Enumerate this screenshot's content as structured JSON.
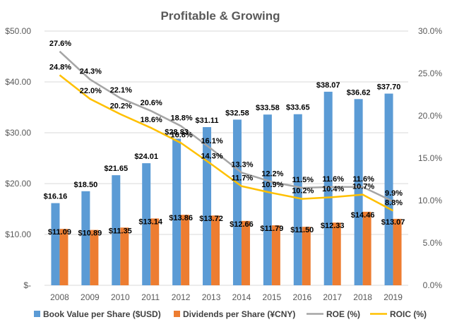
{
  "chart_data": {
    "type": "bar",
    "title": "Profitable & Growing",
    "categories": [
      "2008",
      "2009",
      "2010",
      "2011",
      "2012",
      "2013",
      "2014",
      "2015",
      "2016",
      "2017",
      "2018",
      "2019"
    ],
    "y_left": {
      "ylim": [
        0,
        50
      ],
      "ticks": [
        0,
        10,
        20,
        30,
        40,
        50
      ],
      "tick_labels": [
        "$-",
        "$10.00",
        "$20.00",
        "$30.00",
        "$40.00",
        "$50.00"
      ]
    },
    "y_right": {
      "ylim": [
        0,
        30
      ],
      "ticks": [
        0,
        5,
        10,
        15,
        20,
        25,
        30
      ],
      "tick_labels": [
        "0.0%",
        "5.0%",
        "10.0%",
        "15.0%",
        "20.0%",
        "25.0%",
        "30.0%"
      ]
    },
    "grid": true,
    "legend_position": "bottom",
    "series": [
      {
        "name": "Book Value per Share ($USD)",
        "kind": "bar",
        "axis": "left",
        "color": "#5B9BD5",
        "values": [
          16.16,
          18.5,
          21.65,
          24.01,
          28.83,
          31.11,
          32.58,
          33.58,
          33.65,
          38.07,
          36.62,
          37.7
        ],
        "labels": [
          "$16.16",
          "$18.50",
          "$21.65",
          "$24.01",
          "$28.83",
          "$31.11",
          "$32.58",
          "$33.58",
          "$33.65",
          "$38.07",
          "$36.62",
          "$37.70"
        ]
      },
      {
        "name": "Dividends per Share (¥CNY)",
        "kind": "bar",
        "axis": "left",
        "color": "#ED7D31",
        "values": [
          11.09,
          10.89,
          11.35,
          13.14,
          13.86,
          13.72,
          12.66,
          11.79,
          11.5,
          12.33,
          14.46,
          13.07
        ],
        "labels": [
          "$11.09",
          "$10.89",
          "$11.35",
          "$13.14",
          "$13.86",
          "$13.72",
          "$12.66",
          "$11.79",
          "$11.50",
          "$12.33",
          "$14.46",
          "$13.07"
        ]
      },
      {
        "name": "ROE (%)",
        "kind": "line",
        "axis": "right",
        "color": "#A5A5A5",
        "values": [
          27.6,
          24.3,
          22.1,
          20.6,
          18.8,
          16.1,
          13.3,
          12.2,
          11.5,
          11.6,
          11.6,
          9.9
        ],
        "labels": [
          "27.6%",
          "24.3%",
          "22.1%",
          "20.6%",
          "18.8%",
          "16.1%",
          "13.3%",
          "12.2%",
          "11.5%",
          "11.6%",
          "11.6%",
          "9.9%"
        ]
      },
      {
        "name": "ROIC (%)",
        "kind": "line",
        "axis": "right",
        "color": "#FFC000",
        "values": [
          24.8,
          22.0,
          20.2,
          18.6,
          16.8,
          14.3,
          11.7,
          10.9,
          10.2,
          10.4,
          10.7,
          8.8
        ],
        "labels": [
          "24.8%",
          "22.0%",
          "20.2%",
          "18.6%",
          "16.8%",
          "14.3%",
          "11.7%",
          "10.9%",
          "10.2%",
          "10.4%",
          "10.7%",
          "8.8%"
        ]
      }
    ]
  }
}
